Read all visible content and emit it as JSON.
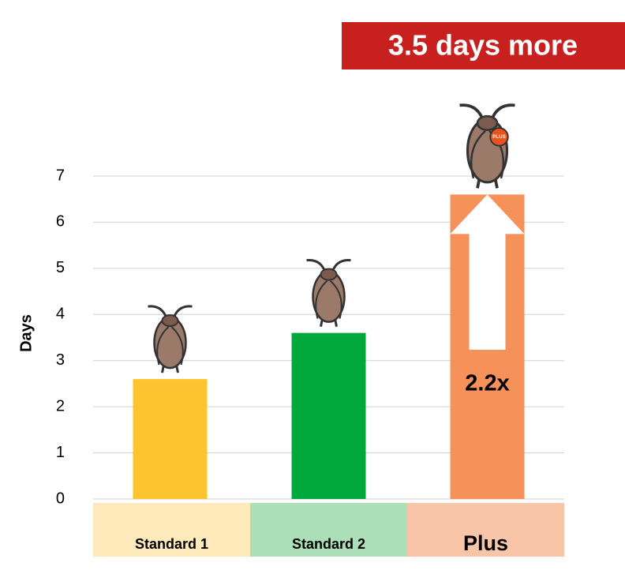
{
  "chart_data": {
    "type": "bar",
    "categories": [
      "Standard 1",
      "Standard 2",
      "Plus"
    ],
    "values": [
      2.6,
      3.6,
      6.6
    ],
    "colors": [
      "#fcc42e",
      "#00a83b",
      "#f7915a"
    ],
    "category_band_colors": [
      "#fde9b9",
      "#acdfb8",
      "#f9c5a8"
    ],
    "ylim": [
      0,
      7
    ],
    "yticks": [
      0,
      1,
      2,
      3,
      4,
      5,
      6,
      7
    ],
    "grid": true,
    "y_label": "Days",
    "annotation": "3.5 days more",
    "multiplier_label": "2.2x",
    "badge_label": "PLUS"
  }
}
